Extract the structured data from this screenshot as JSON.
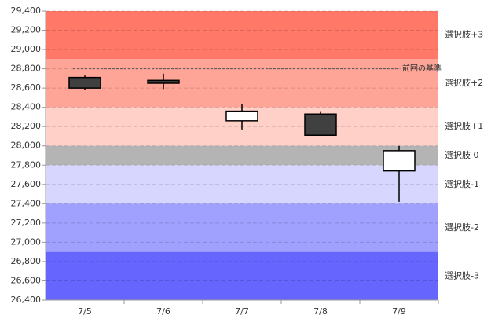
{
  "chart_data": {
    "type": "candlestick",
    "categories": [
      "7/5",
      "7/6",
      "7/7",
      "7/8",
      "7/9"
    ],
    "open": [
      28710,
      28680,
      28260,
      28330,
      27740
    ],
    "high": [
      28730,
      28750,
      28430,
      28360,
      28000
    ],
    "low": [
      28580,
      28590,
      28170,
      28110,
      27420
    ],
    "close": [
      28600,
      28650,
      28360,
      28110,
      27950
    ],
    "up_color": "#ffffff",
    "down_color": "#404040",
    "ylim": [
      26400,
      29400
    ],
    "yticks": [
      {
        "value": 26400,
        "label": "26,400"
      },
      {
        "value": 26600,
        "label": "26,600"
      },
      {
        "value": 26800,
        "label": "26,800"
      },
      {
        "value": 27000,
        "label": "27,000"
      },
      {
        "value": 27200,
        "label": "27,200"
      },
      {
        "value": 27400,
        "label": "27,400"
      },
      {
        "value": 27600,
        "label": "27,600"
      },
      {
        "value": 27800,
        "label": "27,800"
      },
      {
        "value": 28000,
        "label": "28,000"
      },
      {
        "value": 28200,
        "label": "28,200"
      },
      {
        "value": 28400,
        "label": "28,400"
      },
      {
        "value": 28600,
        "label": "28,600"
      },
      {
        "value": 28800,
        "label": "28,800"
      },
      {
        "value": 29000,
        "label": "29,000"
      },
      {
        "value": 29200,
        "label": "29,200"
      },
      {
        "value": 29400,
        "label": "29,400"
      }
    ],
    "grid": true,
    "bands": [
      {
        "label": "選択肢+3",
        "from": 28900,
        "to": 29400,
        "color": "#ff7868"
      },
      {
        "label": "選択肢+2",
        "from": 28400,
        "to": 28900,
        "color": "#ffa598"
      },
      {
        "label": "選択肢+1",
        "from": 28000,
        "to": 28400,
        "color": "#ffd0c8"
      },
      {
        "label": "選択肢 0",
        "from": 27800,
        "to": 28000,
        "color": "#b4b4b4"
      },
      {
        "label": "選択肢-1",
        "from": 27400,
        "to": 27800,
        "color": "#d6d6ff"
      },
      {
        "label": "選択肢-2",
        "from": 26900,
        "to": 27400,
        "color": "#a0a0ff"
      },
      {
        "label": "選択肢-3",
        "from": 26400,
        "to": 26900,
        "color": "#6666ff"
      }
    ],
    "reference_line": {
      "value": 28800,
      "label": "前回の基準"
    }
  }
}
